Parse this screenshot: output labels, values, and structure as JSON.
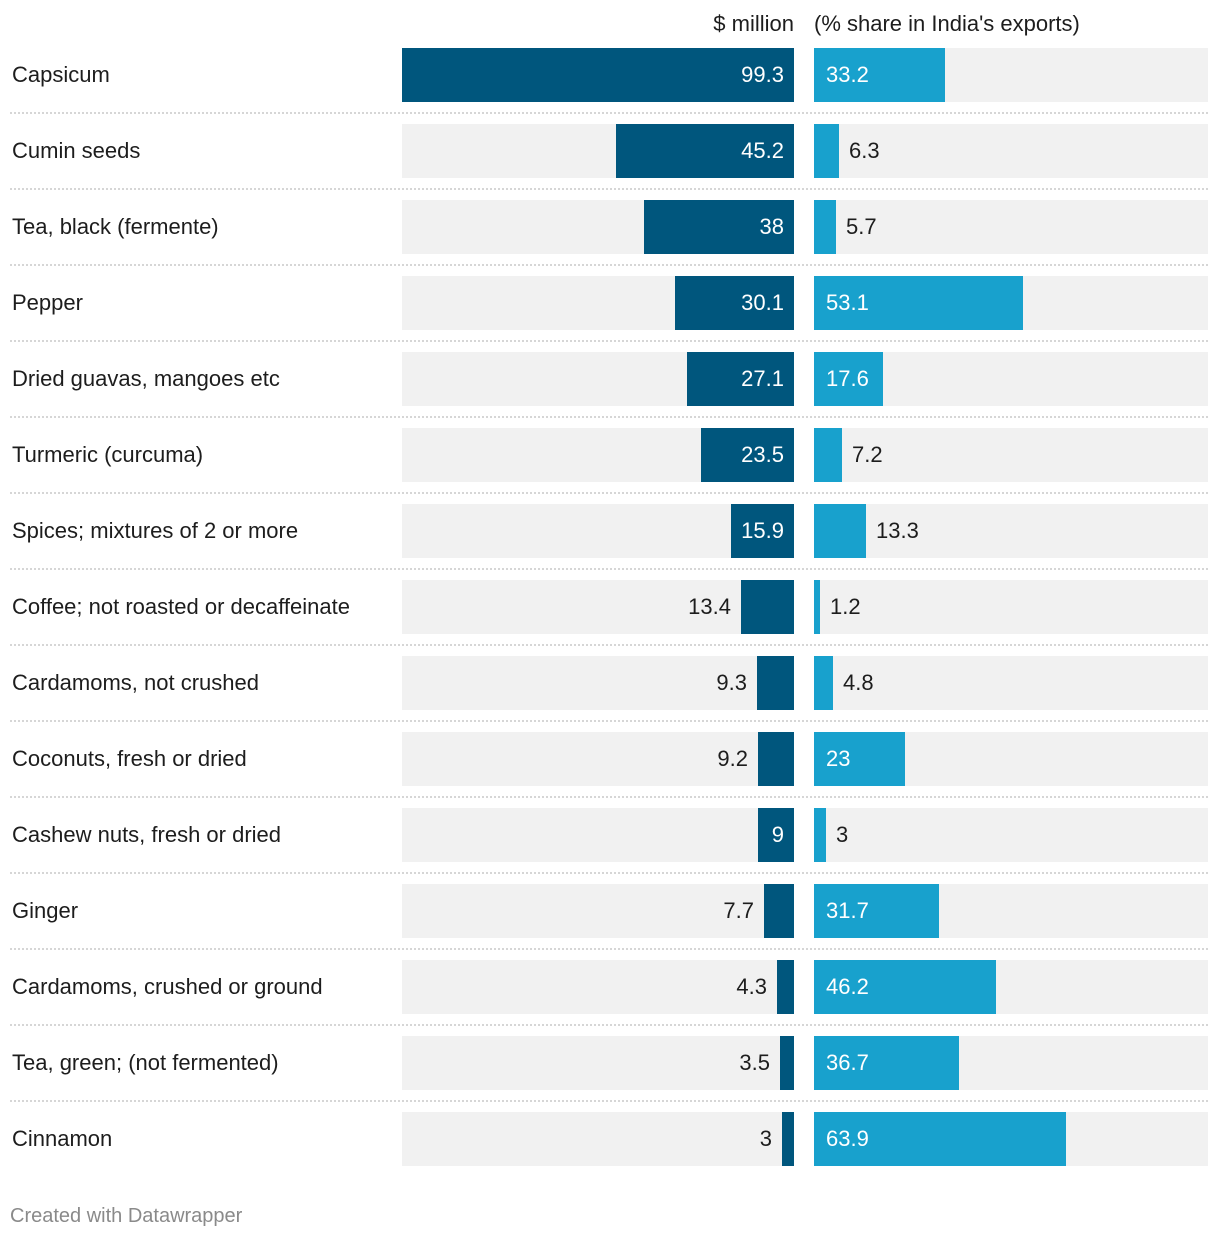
{
  "chart_data": {
    "type": "bar",
    "title": "",
    "series": [
      {
        "name": "$ million",
        "values": [
          99.3,
          45.2,
          38,
          30.1,
          27.1,
          23.5,
          15.9,
          13.4,
          9.3,
          9.2,
          9,
          7.7,
          4.3,
          3.5,
          3
        ]
      },
      {
        "name": "(% share in India's exports)",
        "values": [
          33.2,
          6.3,
          5.7,
          53.1,
          17.6,
          7.2,
          13.3,
          1.2,
          4.8,
          23,
          3,
          31.7,
          46.2,
          36.7,
          63.9
        ]
      }
    ],
    "categories": [
      "Capsicum",
      "Cumin seeds",
      "Tea, black (fermente)",
      "Pepper",
      "Dried guavas, mangoes etc",
      "Turmeric (curcuma)",
      "Spices; mixtures of 2 or more",
      "Coffee; not roasted or decaffeinate",
      "Cardamoms, not crushed",
      "Coconuts, fresh or dried",
      "Cashew nuts, fresh or dried",
      "Ginger",
      "Cardamoms, crushed or ground",
      "Tea, green; (not fermented)",
      "Cinnamon"
    ],
    "xlim_series1": [
      0,
      99.3
    ],
    "xlim_series2": [
      0,
      100
    ],
    "colors": {
      "series1": "#00567d",
      "series2": "#18a1cd",
      "background": "#f1f1f1"
    }
  },
  "footer": "Created with Datawrapper"
}
